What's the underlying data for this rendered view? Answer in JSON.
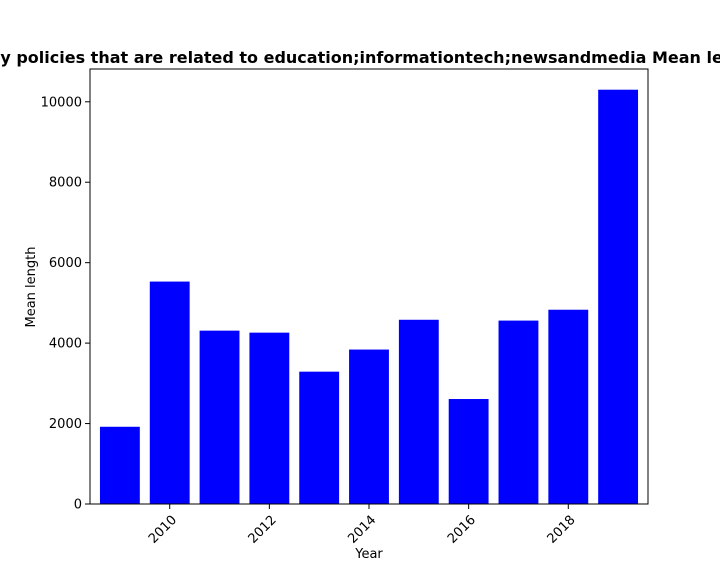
{
  "chart_data": {
    "type": "bar",
    "title": "Mean length of privacy policies that are related to education;informationtech;newsandmedia Mean length in privacy policies",
    "xlabel": "Year",
    "ylabel": "Mean length",
    "x": [
      2009,
      2010,
      2011,
      2012,
      2013,
      2014,
      2015,
      2016,
      2017,
      2018,
      2019
    ],
    "values": [
      1920,
      5530,
      4310,
      4260,
      3290,
      3840,
      4580,
      2610,
      4560,
      4830,
      10300
    ],
    "xticks": [
      2010,
      2012,
      2014,
      2016,
      2018
    ],
    "yticks": [
      0,
      2000,
      4000,
      6000,
      8000,
      10000
    ],
    "xlim": [
      2008.4,
      2019.6
    ],
    "ylim": [
      0,
      10815
    ],
    "bar_color": "#0000ff",
    "grid": false,
    "legend": false
  }
}
